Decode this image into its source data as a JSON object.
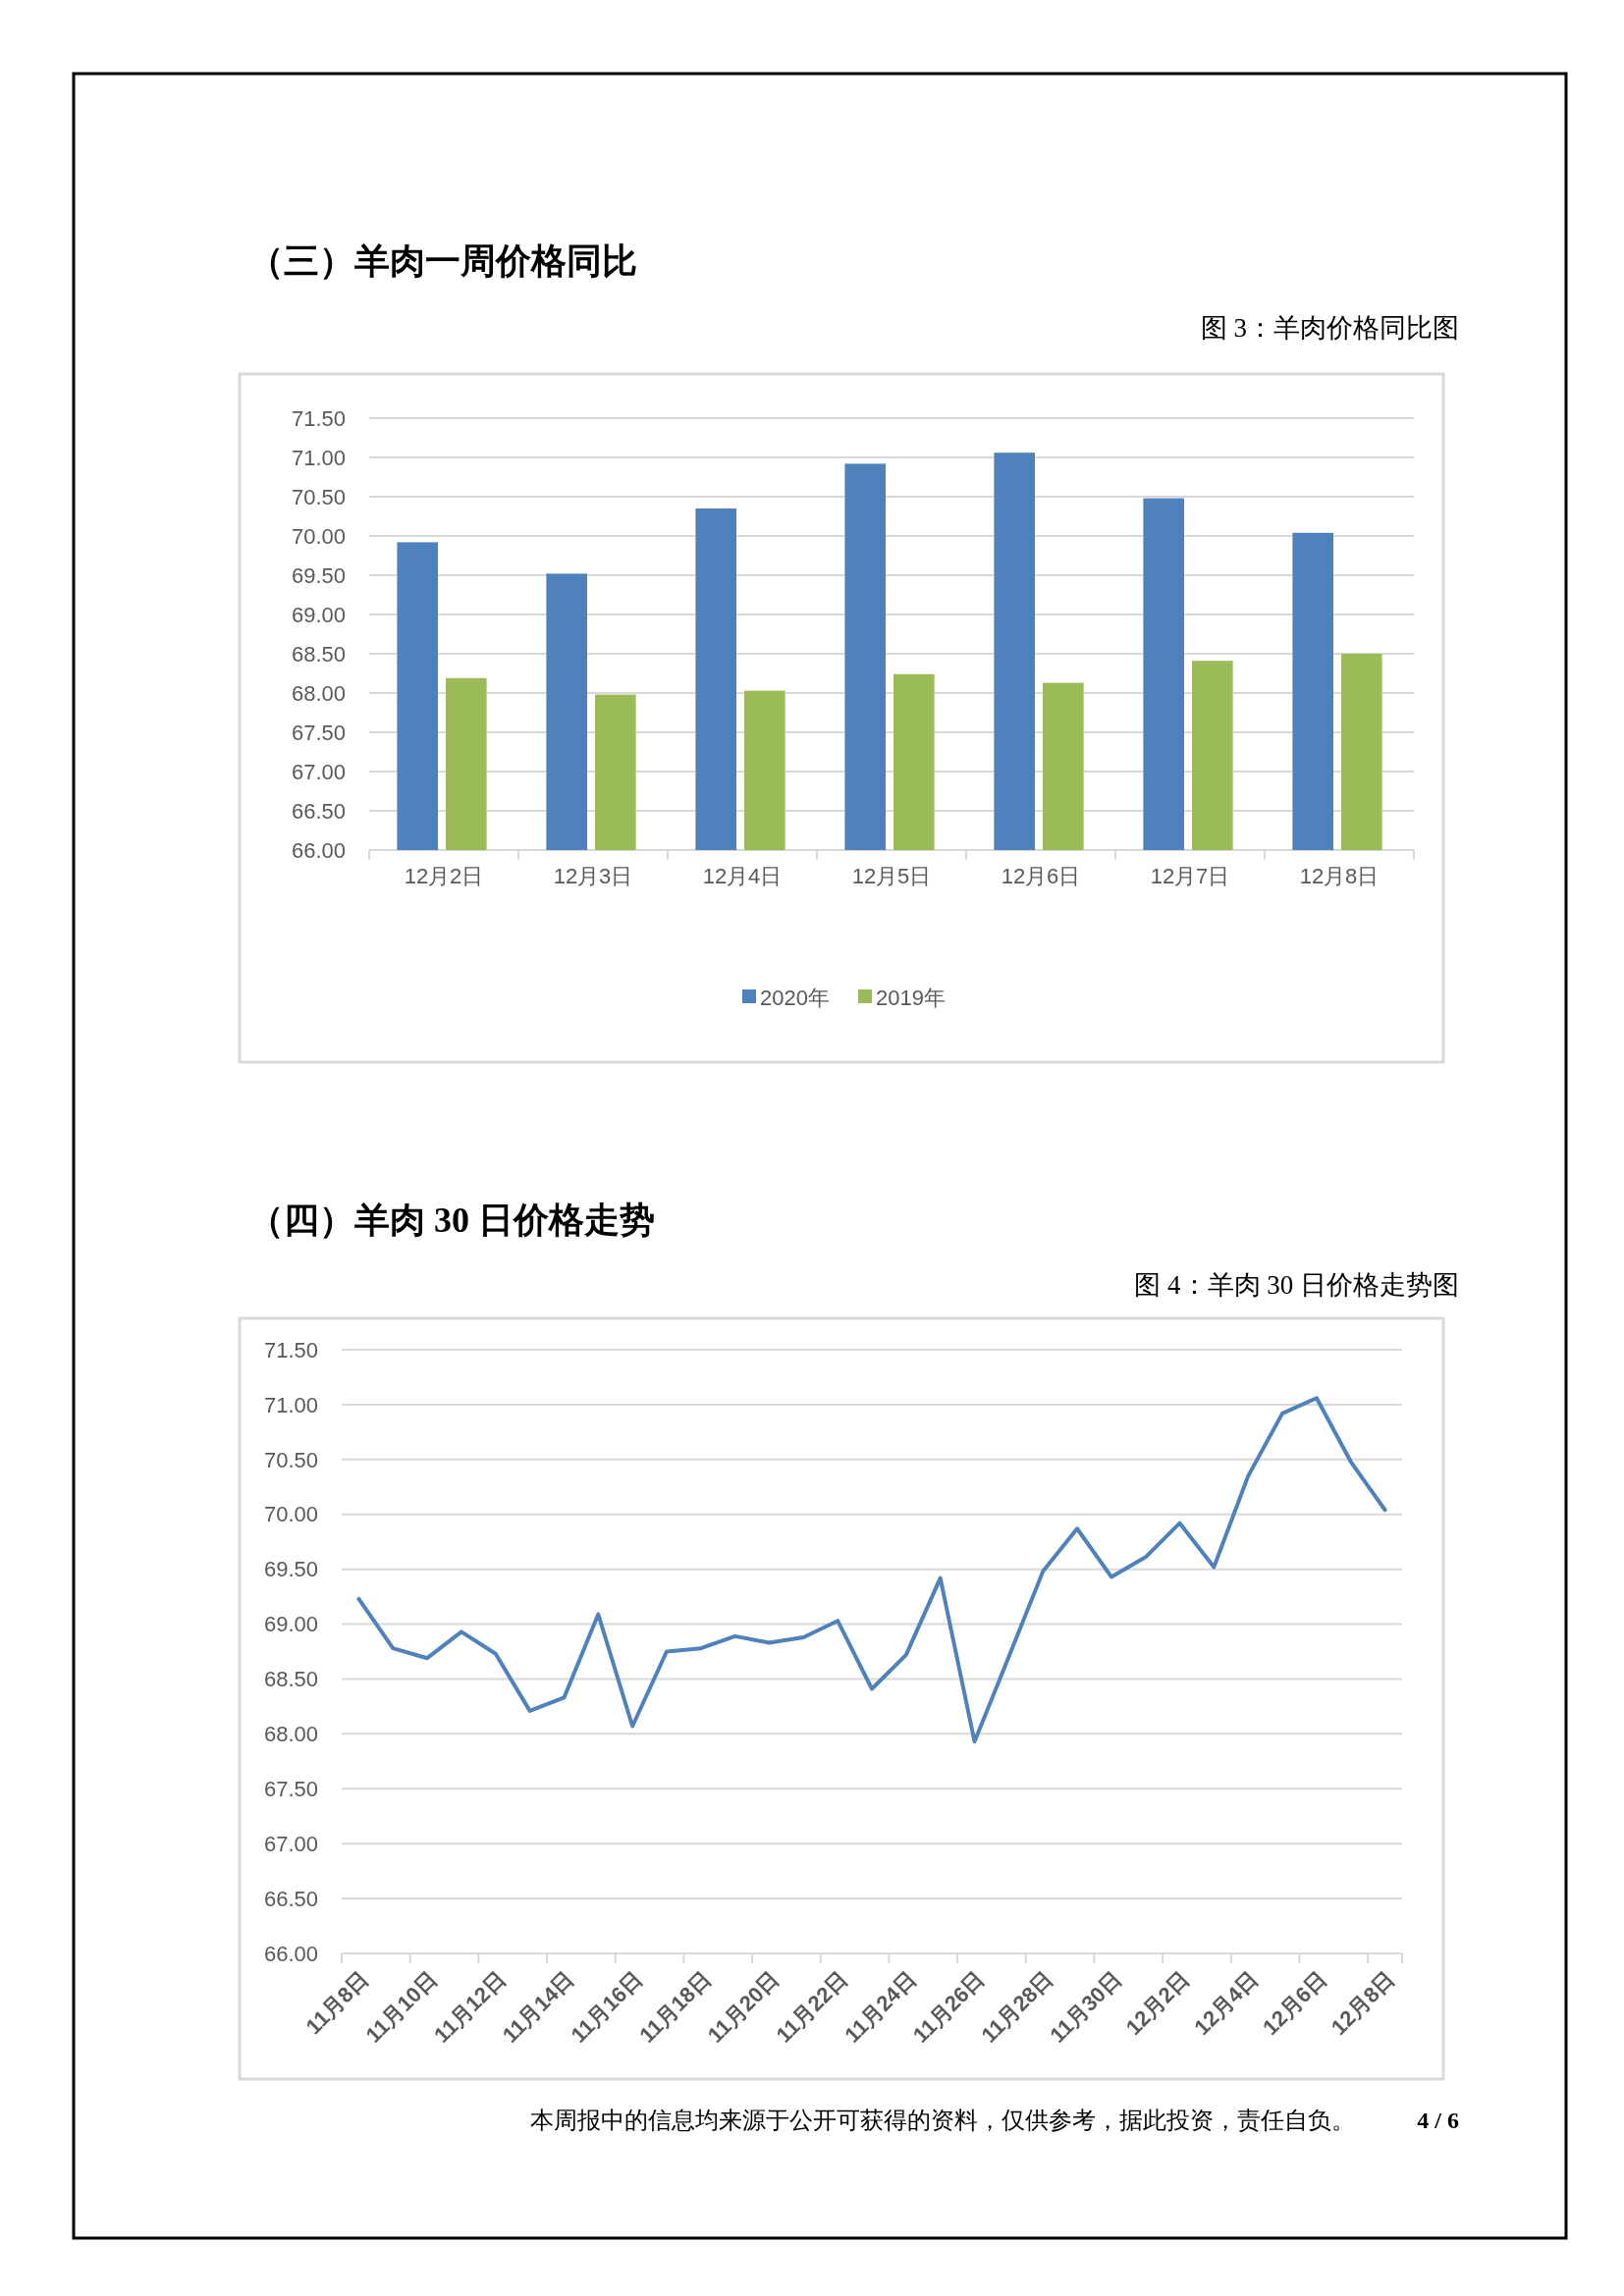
{
  "chart_data": [
    {
      "type": "bar",
      "title": "（三）羊肉一周价格同比",
      "subtitle": "图 3：羊肉价格同比图",
      "categories": [
        "12月2日",
        "12月3日",
        "12月4日",
        "12月5日",
        "12月6日",
        "12月7日",
        "12月8日"
      ],
      "series": [
        {
          "name": "2020年",
          "color": "#4f81bd",
          "values": [
            69.92,
            69.52,
            70.35,
            70.92,
            71.06,
            70.48,
            70.04
          ]
        },
        {
          "name": "2019年",
          "color": "#9bbb59",
          "values": [
            68.19,
            67.98,
            68.03,
            68.24,
            68.13,
            68.41,
            68.5
          ]
        }
      ],
      "ylim": [
        66,
        71.5
      ],
      "yticks": [
        {
          "value": 66,
          "label": "66.00"
        },
        {
          "value": 66.5,
          "label": "66.50"
        },
        {
          "value": 67,
          "label": "67.00"
        },
        {
          "value": 67.5,
          "label": "67.50"
        },
        {
          "value": 68,
          "label": "68.00"
        },
        {
          "value": 68.5,
          "label": "68.50"
        },
        {
          "value": 69,
          "label": "69.00"
        },
        {
          "value": 69.5,
          "label": "69.50"
        },
        {
          "value": 70,
          "label": "70.00"
        },
        {
          "value": 70.5,
          "label": "70.50"
        },
        {
          "value": 71,
          "label": "71.00"
        },
        {
          "value": 71.5,
          "label": "71.50"
        }
      ],
      "grid": "y",
      "legend": "bottom"
    },
    {
      "type": "line",
      "title": "（四）羊肉 30 日价格走势",
      "subtitle": "图 4：羊肉 30 日价格走势图",
      "categories": [
        "11月8日",
        null,
        "11月10日",
        null,
        "11月12日",
        null,
        "11月14日",
        null,
        "11月16日",
        null,
        "11月18日",
        null,
        "11月20日",
        null,
        "11月22日",
        null,
        "11月24日",
        null,
        "11月26日",
        null,
        "11月28日",
        null,
        "11月30日",
        null,
        "12月2日",
        null,
        "12月4日",
        null,
        "12月6日",
        null,
        "12月8日"
      ],
      "series": [
        {
          "color": "#4f81bd",
          "values": [
            69.23,
            68.78,
            68.69,
            68.93,
            68.73,
            68.21,
            68.33,
            69.09,
            68.07,
            68.75,
            68.78,
            68.89,
            68.83,
            68.88,
            69.03,
            68.41,
            68.72,
            69.42,
            67.93,
            68.7,
            69.48,
            69.87,
            69.43,
            69.61,
            69.92,
            69.52,
            70.35,
            70.92,
            71.06,
            70.48,
            70.04
          ]
        }
      ],
      "ylim": [
        66,
        71.5
      ],
      "yticks": [
        {
          "value": 66,
          "label": "66.00"
        },
        {
          "value": 66.5,
          "label": "66.50"
        },
        {
          "value": 67,
          "label": "67.00"
        },
        {
          "value": 67.5,
          "label": "67.50"
        },
        {
          "value": 68,
          "label": "68.00"
        },
        {
          "value": 68.5,
          "label": "68.50"
        },
        {
          "value": 69,
          "label": "69.00"
        },
        {
          "value": 69.5,
          "label": "69.50"
        },
        {
          "value": 70,
          "label": "70.00"
        },
        {
          "value": 70.5,
          "label": "70.50"
        },
        {
          "value": 71,
          "label": "71.00"
        },
        {
          "value": 71.5,
          "label": "71.50"
        }
      ],
      "grid": "y",
      "marker": "none",
      "line_style": "solid",
      "legend": false,
      "annotations": [
        "本周报中的信息均来源于公开可获得的资料，仅供参考，据此投资，责任自负。",
        "4 / 6"
      ]
    }
  ]
}
